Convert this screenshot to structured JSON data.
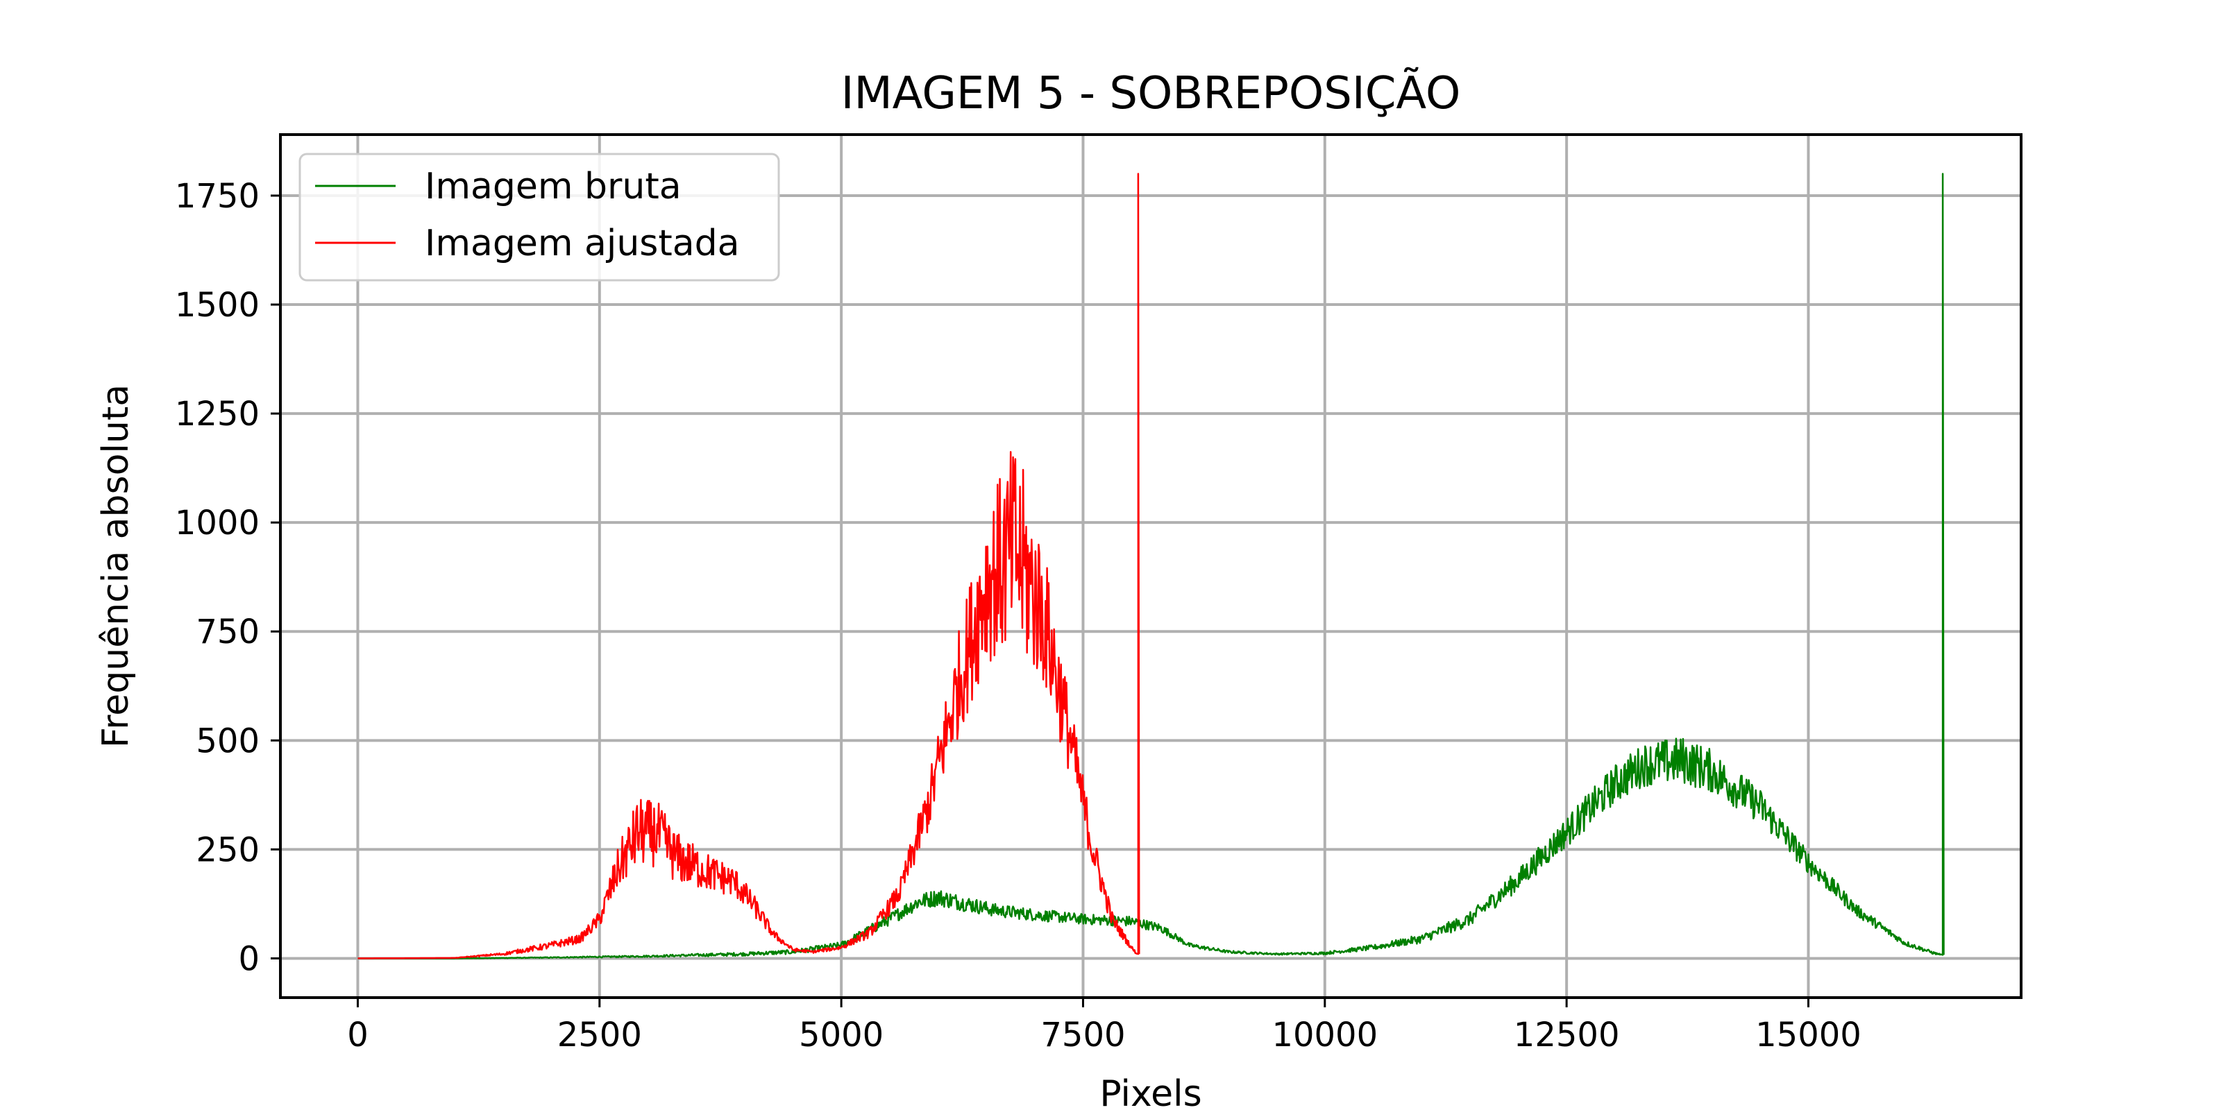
{
  "chart_data": {
    "type": "line",
    "title": "IMAGEM 5 - SOBREPOSIÇÃO",
    "xlabel": "Pixels",
    "ylabel": "Frequência absoluta",
    "xlim": [
      -800,
      17200
    ],
    "ylim": [
      -90,
      1890
    ],
    "xticks": [
      0,
      2500,
      5000,
      7500,
      10000,
      12500,
      15000
    ],
    "xtick_labels": [
      "0",
      "2500",
      "5000",
      "7500",
      "10000",
      "12500",
      "15000"
    ],
    "yticks": [
      0,
      250,
      500,
      750,
      1000,
      1250,
      1500,
      1750
    ],
    "ytick_labels": [
      "0",
      "250",
      "500",
      "750",
      "1000",
      "1250",
      "1500",
      "1750"
    ],
    "grid": true,
    "legend_position": "upper-left",
    "series": [
      {
        "name": "Imagem bruta",
        "color": "#008000",
        "x": [
          0,
          1000,
          2000,
          3000,
          4000,
          4500,
          5000,
          5500,
          5800,
          6000,
          6300,
          6600,
          7000,
          7500,
          8000,
          8300,
          8600,
          9000,
          9500,
          10000,
          10500,
          11000,
          11500,
          12000,
          12500,
          13000,
          13300,
          13700,
          14000,
          14500,
          15000,
          15500,
          16000,
          16300,
          16390,
          16390,
          16400
        ],
        "y": [
          0,
          0,
          2,
          5,
          10,
          15,
          30,
          90,
          130,
          140,
          125,
          110,
          100,
          90,
          85,
          70,
          30,
          15,
          10,
          12,
          25,
          45,
          90,
          180,
          290,
          400,
          445,
          455,
          430,
          350,
          220,
          110,
          35,
          12,
          8,
          1800,
          8
        ],
        "noise": [
          0,
          0,
          1,
          2,
          4,
          5,
          8,
          14,
          18,
          20,
          18,
          15,
          14,
          12,
          12,
          10,
          5,
          3,
          2,
          3,
          6,
          10,
          16,
          25,
          35,
          45,
          50,
          55,
          50,
          40,
          25,
          14,
          6,
          3,
          0,
          0,
          0
        ]
      },
      {
        "name": "Imagem ajustada",
        "color": "#ff0000",
        "x": [
          0,
          1000,
          1500,
          2000,
          2300,
          2500,
          2700,
          2900,
          3100,
          3300,
          3600,
          3900,
          4100,
          4300,
          4500,
          4700,
          5000,
          5300,
          5600,
          5900,
          6200,
          6500,
          6800,
          7100,
          7400,
          7600,
          7800,
          8000,
          8050,
          8070,
          8070,
          8080
        ],
        "y": [
          0,
          1,
          10,
          30,
          45,
          90,
          210,
          290,
          285,
          230,
          200,
          175,
          120,
          55,
          20,
          15,
          25,
          60,
          150,
          350,
          620,
          860,
          940,
          780,
          470,
          250,
          90,
          25,
          12,
          10,
          1800,
          10
        ],
        "noise": [
          0,
          0,
          3,
          8,
          10,
          18,
          50,
          80,
          75,
          60,
          45,
          35,
          25,
          10,
          4,
          3,
          5,
          12,
          25,
          60,
          120,
          180,
          250,
          160,
          80,
          45,
          18,
          5,
          2,
          0,
          0,
          0
        ]
      }
    ]
  }
}
